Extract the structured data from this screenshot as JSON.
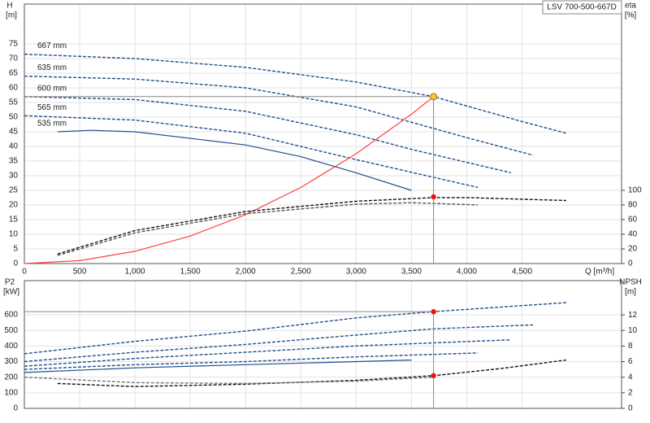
{
  "chart_data": [
    {
      "type": "line",
      "title": "LSV 700-500-667D",
      "y_label": "H",
      "y_unit": "[m]",
      "y2_label": "eta",
      "y2_unit": "[%]",
      "x_label": "Q [m³/h]",
      "xlim": [
        0,
        5400
      ],
      "xticks": [
        0,
        500,
        {
          "value": 1000,
          "label": "1,000"
        },
        {
          "value": 1500,
          "label": "1,500"
        },
        {
          "value": 2000,
          "label": "2,000"
        },
        {
          "value": 2500,
          "label": "2,500"
        },
        {
          "value": 3000,
          "label": "3,000"
        },
        {
          "value": 3500,
          "label": "3,500"
        },
        {
          "value": 4000,
          "label": "4,000"
        },
        {
          "value": 4500,
          "label": "4,500"
        }
      ],
      "ylim": [
        0,
        88.6
      ],
      "yticks": [
        0,
        5,
        10,
        15,
        20,
        25,
        30,
        35,
        40,
        45,
        50,
        55,
        60,
        65,
        70,
        75
      ],
      "y2lim": [
        0,
        354
      ],
      "y2ticks": [
        0,
        20,
        40,
        60,
        80,
        100
      ],
      "grid": true,
      "series": [
        {
          "name": "667 mm",
          "color": "#1f4e8c",
          "style": "dashed",
          "x": [
            0,
            1000,
            2000,
            3000,
            3700,
            4500,
            4900
          ],
          "values": [
            71.5,
            70,
            67,
            62,
            57,
            48.5,
            44.5
          ]
        },
        {
          "name": "635 mm",
          "color": "#1f4e8c",
          "style": "dashed",
          "x": [
            0,
            1000,
            2000,
            3000,
            4000,
            4600
          ],
          "values": [
            64,
            63,
            60,
            53.5,
            43,
            37
          ]
        },
        {
          "name": "600 mm",
          "color": "#1f4e8c",
          "style": "dashed",
          "x": [
            0,
            1000,
            2000,
            3000,
            3500,
            4400
          ],
          "values": [
            57,
            56,
            52,
            44,
            39,
            31
          ]
        },
        {
          "name": "565 mm",
          "color": "#1f4e8c",
          "style": "dashed",
          "x": [
            0,
            1000,
            2000,
            3000,
            4100
          ],
          "values": [
            50.5,
            49,
            44.5,
            35.5,
            26
          ]
        },
        {
          "name": "535 mm",
          "color": "#1f4e8c",
          "style": "solid",
          "x": [
            300,
            600,
            1000,
            2000,
            2500,
            3000,
            3500
          ],
          "values": [
            45,
            45.5,
            45,
            40.5,
            36.5,
            31,
            25
          ]
        },
        {
          "color": "#ff4040",
          "style": "solid",
          "x": [
            0,
            500,
            1000,
            1500,
            2000,
            2500,
            3000,
            3500,
            3700
          ],
          "values": [
            0,
            1,
            4.2,
            9.4,
            16.7,
            26,
            37.5,
            51,
            57
          ]
        },
        {
          "color": "#111111",
          "style": "dashed",
          "axis": "y2",
          "x": [
            300,
            1000,
            2000,
            3000,
            3700,
            4000,
            4900
          ],
          "values": [
            13,
            45,
            71,
            85,
            90,
            90,
            86
          ]
        },
        {
          "color": "#555555",
          "style": "dashed",
          "axis": "y2",
          "x": [
            300,
            1000,
            2000,
            3000,
            3500,
            4100
          ],
          "values": [
            11,
            42,
            68,
            81,
            83,
            80
          ]
        }
      ],
      "points": [
        {
          "x": 3700,
          "y": 57,
          "color": "#f5c542"
        },
        {
          "x": 3700,
          "y": 91,
          "color": "#ee1111",
          "axis": "y2"
        }
      ]
    },
    {
      "type": "line",
      "y_label": "P2",
      "y_unit": "[kW]",
      "y2_label": "NPSH",
      "y2_unit": "[m]",
      "xlim": [
        0,
        5400
      ],
      "xticks": [
        0,
        500,
        1000,
        1500,
        2000,
        2500,
        3000,
        3500,
        4000,
        4500
      ],
      "ylim": [
        0,
        819
      ],
      "yticks": [
        0,
        100,
        200,
        300,
        400,
        500,
        600
      ],
      "y2lim": [
        0,
        16.4
      ],
      "y2ticks": [
        0,
        2,
        4,
        6,
        8,
        10,
        12
      ],
      "grid": true,
      "series": [
        {
          "color": "#1f4e8c",
          "style": "dashed",
          "x": [
            0,
            1000,
            2000,
            3000,
            3700,
            4900
          ],
          "values": [
            350,
            430,
            495,
            580,
            620,
            678
          ]
        },
        {
          "color": "#1f4e8c",
          "style": "dashed",
          "x": [
            0,
            1000,
            2000,
            3000,
            3700,
            4600
          ],
          "values": [
            300,
            360,
            410,
            470,
            510,
            535
          ]
        },
        {
          "color": "#1f4e8c",
          "style": "dashed",
          "x": [
            0,
            1000,
            2000,
            3000,
            4400
          ],
          "values": [
            270,
            320,
            360,
            400,
            440
          ]
        },
        {
          "color": "#1f4e8c",
          "style": "dashed",
          "x": [
            0,
            1000,
            2000,
            3000,
            4100
          ],
          "values": [
            250,
            280,
            300,
            330,
            355
          ]
        },
        {
          "color": "#1f4e8c",
          "style": "solid",
          "x": [
            0,
            1000,
            2000,
            3500
          ],
          "values": [
            230,
            260,
            280,
            310
          ]
        },
        {
          "color": "#111111",
          "style": "dashed",
          "axis": "y2",
          "x": [
            300,
            1000,
            2000,
            3000,
            3700,
            4300,
            4900
          ],
          "values": [
            3.2,
            2.8,
            3.1,
            3.6,
            4.2,
            5.1,
            6.2
          ]
        },
        {
          "color": "#777777",
          "style": "dashed",
          "axis": "y2",
          "x": [
            0,
            1000,
            2000,
            3000,
            3700
          ],
          "values": [
            4,
            3.3,
            3.2,
            3.5,
            4.0
          ]
        }
      ],
      "points": [
        {
          "x": 3700,
          "y": 620,
          "color": "#ee1111"
        },
        {
          "x": 3700,
          "y": 4.2,
          "color": "#ee1111",
          "axis": "y2"
        }
      ]
    }
  ]
}
